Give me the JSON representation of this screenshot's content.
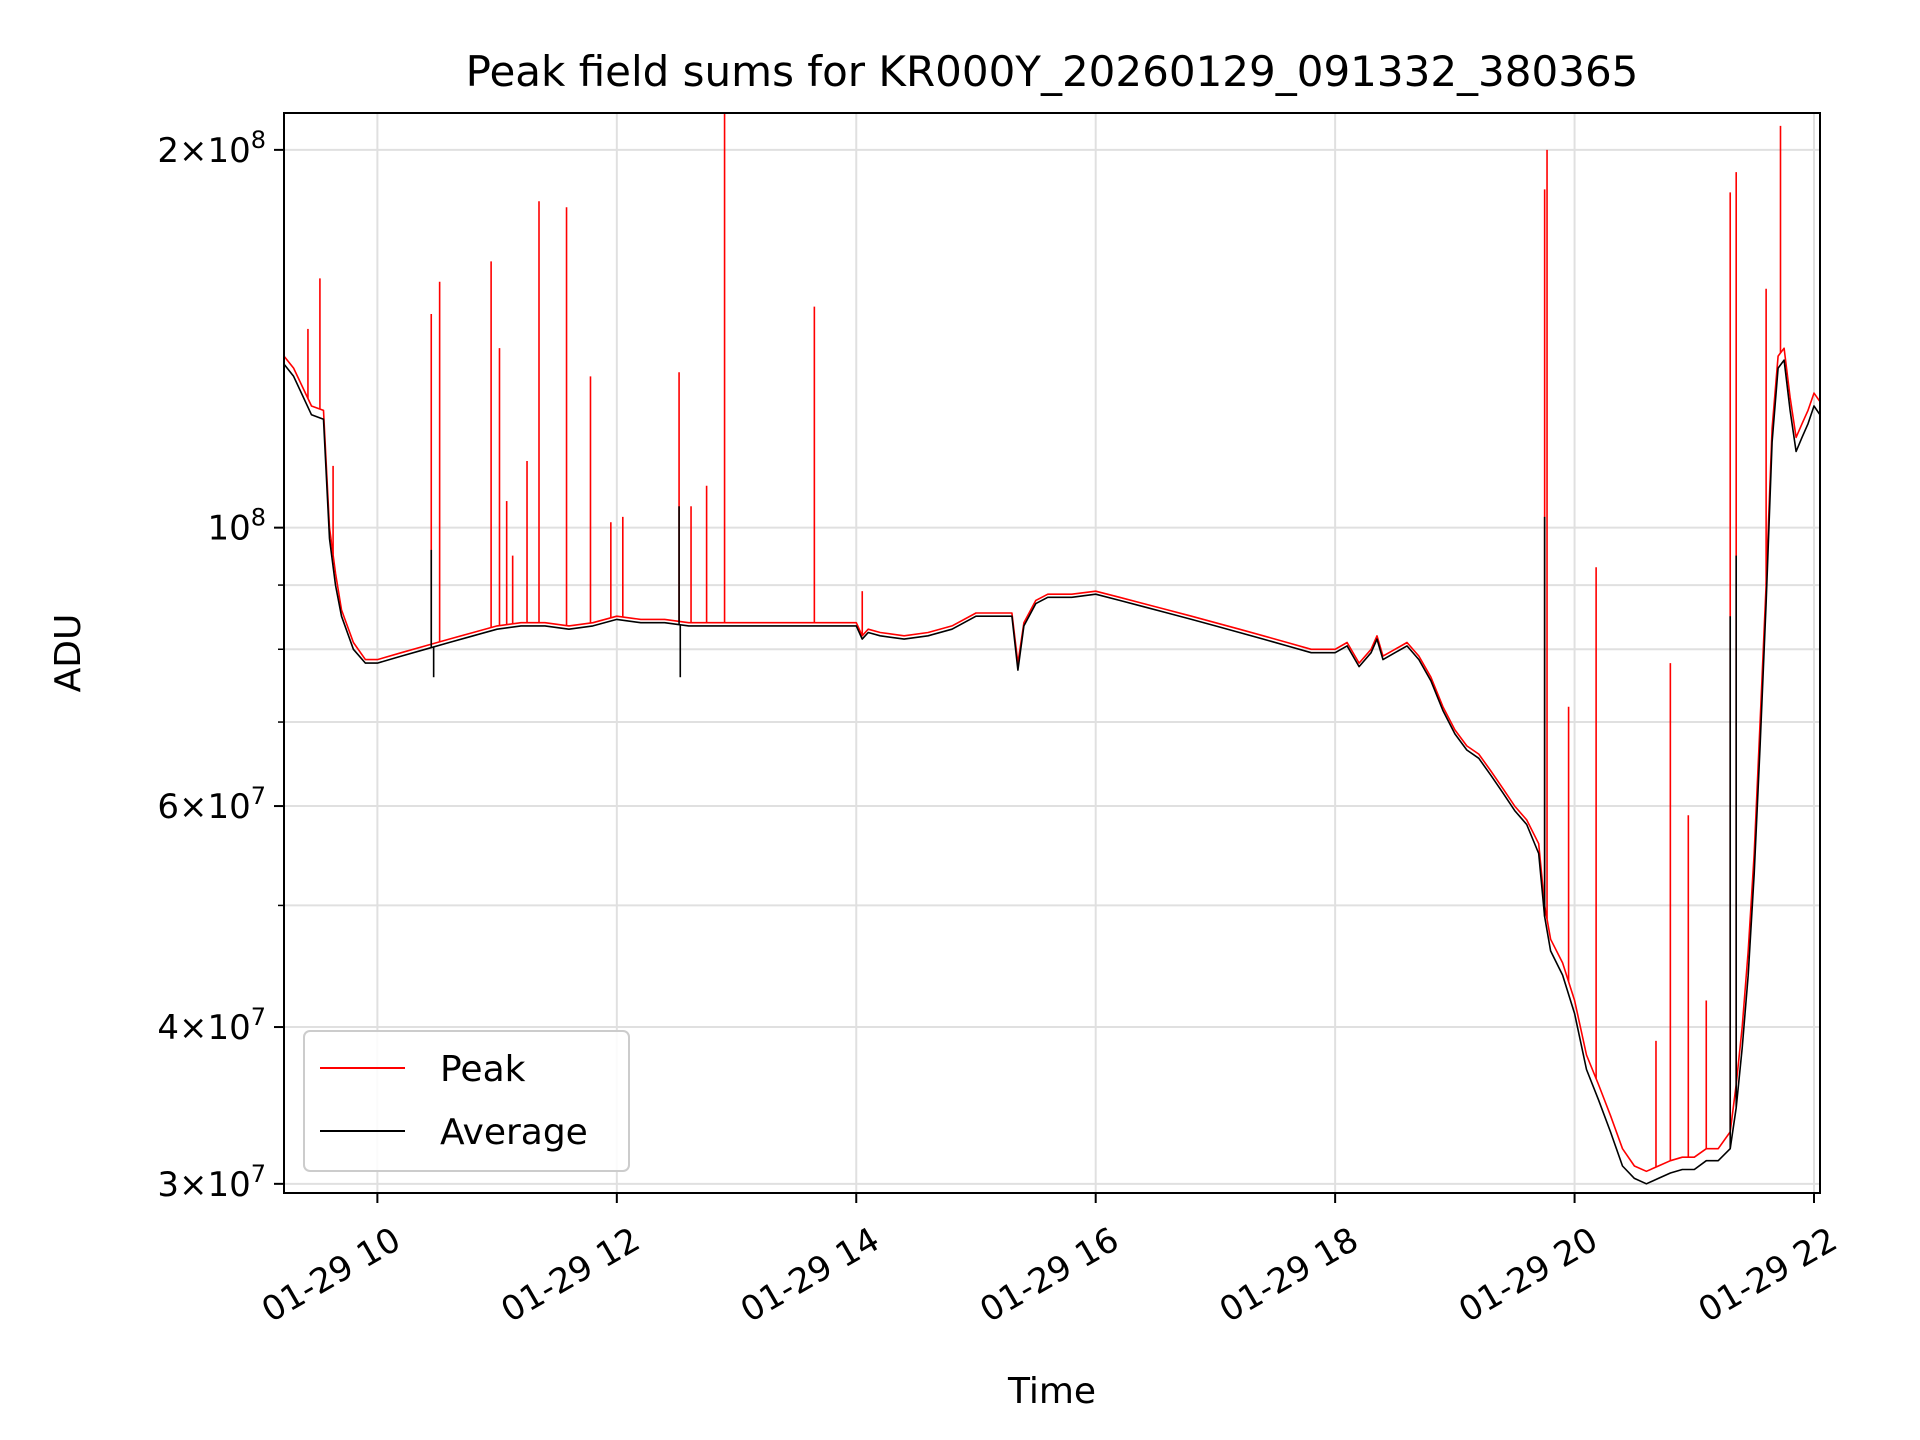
{
  "chart_data": {
    "type": "line",
    "title": "Peak field sums for KR000Y_20260129_091332_380365",
    "xlabel": "Time",
    "ylabel": "ADU",
    "yscale": "log",
    "xlim": [
      9.22,
      22.05
    ],
    "ylim": [
      29500000,
      214000000
    ],
    "grid": true,
    "legend_position": "lower-left",
    "x_ticks": [
      {
        "value": 10,
        "label": "01-29 10"
      },
      {
        "value": 12,
        "label": "01-29 12"
      },
      {
        "value": 14,
        "label": "01-29 14"
      },
      {
        "value": 16,
        "label": "01-29 16"
      },
      {
        "value": 18,
        "label": "01-29 18"
      },
      {
        "value": 20,
        "label": "01-29 20"
      },
      {
        "value": 22,
        "label": "01-29 22"
      }
    ],
    "y_major_ticks": [
      {
        "value": 30000000,
        "base": "3",
        "exp": "7"
      },
      {
        "value": 40000000,
        "base": "4",
        "exp": "7"
      },
      {
        "value": 60000000,
        "base": "6",
        "exp": "7"
      },
      {
        "value": 100000000,
        "base": "",
        "exp": "8"
      },
      {
        "value": 200000000,
        "base": "2",
        "exp": "8"
      }
    ],
    "y_minor_ticks": [
      50000000,
      70000000,
      80000000,
      90000000
    ],
    "series": [
      {
        "name": "Peak",
        "color": "#ff0000",
        "x": [
          9.22,
          9.3,
          9.45,
          9.55,
          9.6,
          9.65,
          9.7,
          9.8,
          9.9,
          10.0,
          10.2,
          10.4,
          10.6,
          10.8,
          11.0,
          11.2,
          11.4,
          11.6,
          11.8,
          12.0,
          12.2,
          12.4,
          12.6,
          12.8,
          13.0,
          13.2,
          13.4,
          13.6,
          13.8,
          14.0,
          14.05,
          14.1,
          14.2,
          14.4,
          14.6,
          14.8,
          15.0,
          15.2,
          15.3,
          15.35,
          15.4,
          15.5,
          15.6,
          15.8,
          16.0,
          16.2,
          16.4,
          16.6,
          16.8,
          17.0,
          17.2,
          17.4,
          17.6,
          17.8,
          18.0,
          18.1,
          18.2,
          18.3,
          18.35,
          18.4,
          18.5,
          18.6,
          18.7,
          18.8,
          18.9,
          19.0,
          19.1,
          19.2,
          19.3,
          19.4,
          19.5,
          19.6,
          19.7,
          19.75,
          19.8,
          19.9,
          20.0,
          20.1,
          20.2,
          20.3,
          20.4,
          20.5,
          20.6,
          20.7,
          20.8,
          20.9,
          21.0,
          21.1,
          21.2,
          21.3,
          21.35,
          21.4,
          21.45,
          21.5,
          21.55,
          21.6,
          21.65,
          21.7,
          21.75,
          21.8,
          21.85,
          21.9,
          21.95,
          22.0,
          22.05
        ],
        "values": [
          137000000,
          134000000,
          125000000,
          124000000,
          100000000,
          92000000,
          86000000,
          81000000,
          78500000,
          78500000,
          79500000,
          80500000,
          81500000,
          82500000,
          83500000,
          84000000,
          84000000,
          83500000,
          84000000,
          85000000,
          84500000,
          84500000,
          84000000,
          84000000,
          84000000,
          84000000,
          84000000,
          84000000,
          84000000,
          84000000,
          82000000,
          83000000,
          82500000,
          82000000,
          82500000,
          83500000,
          85500000,
          85500000,
          85500000,
          78000000,
          84000000,
          87500000,
          88500000,
          88500000,
          89000000,
          88000000,
          87000000,
          86000000,
          85000000,
          84000000,
          83000000,
          82000000,
          81000000,
          80000000,
          80000000,
          81000000,
          78000000,
          80000000,
          82000000,
          79000000,
          80000000,
          81000000,
          79000000,
          76000000,
          72000000,
          69000000,
          67000000,
          66000000,
          64000000,
          62000000,
          60000000,
          58500000,
          56000000,
          50000000,
          47000000,
          45000000,
          42000000,
          38000000,
          36000000,
          34000000,
          32000000,
          31000000,
          30700000,
          31000000,
          31300000,
          31500000,
          31500000,
          32000000,
          32000000,
          33000000,
          36000000,
          40000000,
          46000000,
          55000000,
          70000000,
          90000000,
          120000000,
          137000000,
          139000000,
          127000000,
          118000000,
          121000000,
          124000000,
          128000000,
          126000000
        ],
        "spikes": [
          {
            "x": 9.42,
            "value": 144000000
          },
          {
            "x": 9.52,
            "value": 158000000
          },
          {
            "x": 9.63,
            "value": 112000000
          },
          {
            "x": 10.45,
            "value": 148000000
          },
          {
            "x": 10.52,
            "value": 157000000
          },
          {
            "x": 10.95,
            "value": 163000000
          },
          {
            "x": 11.02,
            "value": 139000000
          },
          {
            "x": 11.08,
            "value": 105000000
          },
          {
            "x": 11.13,
            "value": 95000000
          },
          {
            "x": 11.25,
            "value": 113000000
          },
          {
            "x": 11.35,
            "value": 182000000
          },
          {
            "x": 11.58,
            "value": 180000000
          },
          {
            "x": 11.78,
            "value": 132000000
          },
          {
            "x": 11.95,
            "value": 101000000
          },
          {
            "x": 12.05,
            "value": 102000000
          },
          {
            "x": 12.52,
            "value": 133000000
          },
          {
            "x": 12.62,
            "value": 104000000
          },
          {
            "x": 12.75,
            "value": 108000000
          },
          {
            "x": 12.9,
            "value": 214000000
          },
          {
            "x": 13.65,
            "value": 150000000
          },
          {
            "x": 14.05,
            "value": 89000000
          },
          {
            "x": 19.75,
            "value": 186000000
          },
          {
            "x": 19.77,
            "value": 200000000
          },
          {
            "x": 19.95,
            "value": 72000000
          },
          {
            "x": 20.18,
            "value": 93000000
          },
          {
            "x": 20.68,
            "value": 39000000
          },
          {
            "x": 20.8,
            "value": 78000000
          },
          {
            "x": 20.95,
            "value": 59000000
          },
          {
            "x": 21.1,
            "value": 42000000
          },
          {
            "x": 21.3,
            "value": 185000000
          },
          {
            "x": 21.35,
            "value": 192000000
          },
          {
            "x": 21.6,
            "value": 155000000
          },
          {
            "x": 21.72,
            "value": 209000000
          }
        ]
      },
      {
        "name": "Average",
        "color": "#000000",
        "x": [
          9.22,
          9.3,
          9.45,
          9.55,
          9.6,
          9.65,
          9.7,
          9.8,
          9.9,
          10.0,
          10.2,
          10.4,
          10.6,
          10.8,
          11.0,
          11.2,
          11.4,
          11.6,
          11.8,
          12.0,
          12.2,
          12.4,
          12.6,
          12.8,
          13.0,
          13.2,
          13.4,
          13.6,
          13.8,
          14.0,
          14.05,
          14.1,
          14.2,
          14.4,
          14.6,
          14.8,
          15.0,
          15.2,
          15.3,
          15.35,
          15.4,
          15.5,
          15.6,
          15.8,
          16.0,
          16.2,
          16.4,
          16.6,
          16.8,
          17.0,
          17.2,
          17.4,
          17.6,
          17.8,
          18.0,
          18.1,
          18.2,
          18.3,
          18.35,
          18.4,
          18.5,
          18.6,
          18.7,
          18.8,
          18.9,
          19.0,
          19.1,
          19.2,
          19.3,
          19.4,
          19.5,
          19.6,
          19.7,
          19.75,
          19.8,
          19.9,
          20.0,
          20.1,
          20.2,
          20.3,
          20.4,
          20.5,
          20.6,
          20.7,
          20.8,
          20.9,
          21.0,
          21.1,
          21.2,
          21.3,
          21.35,
          21.4,
          21.45,
          21.5,
          21.55,
          21.6,
          21.65,
          21.7,
          21.75,
          21.8,
          21.85,
          21.9,
          21.95,
          22.0,
          22.05
        ],
        "values": [
          135000000,
          132000000,
          123000000,
          122000000,
          98000000,
          90000000,
          85000000,
          80000000,
          78000000,
          78000000,
          79000000,
          80000000,
          81000000,
          82000000,
          83000000,
          83500000,
          83500000,
          83000000,
          83500000,
          84500000,
          84000000,
          84000000,
          83500000,
          83500000,
          83500000,
          83500000,
          83500000,
          83500000,
          83500000,
          83500000,
          81500000,
          82500000,
          82000000,
          81500000,
          82000000,
          83000000,
          85000000,
          85000000,
          85000000,
          77000000,
          83500000,
          87000000,
          88000000,
          88000000,
          88500000,
          87500000,
          86500000,
          85500000,
          84500000,
          83500000,
          82500000,
          81500000,
          80500000,
          79500000,
          79500000,
          80500000,
          77500000,
          79500000,
          81500000,
          78500000,
          79500000,
          80500000,
          78500000,
          75500000,
          71500000,
          68500000,
          66500000,
          65500000,
          63500000,
          61500000,
          59500000,
          58000000,
          55000000,
          49000000,
          46000000,
          44000000,
          41000000,
          37000000,
          35000000,
          33000000,
          31000000,
          30300000,
          30000000,
          30300000,
          30600000,
          30800000,
          30800000,
          31300000,
          31300000,
          32000000,
          34500000,
          38500000,
          44000000,
          53000000,
          67000000,
          87000000,
          117000000,
          134000000,
          136000000,
          124000000,
          115000000,
          118000000,
          121000000,
          125000000,
          123000000
        ],
        "spikes": [
          {
            "x": 10.45,
            "value": 96000000
          },
          {
            "x": 10.47,
            "value": 76000000
          },
          {
            "x": 12.52,
            "value": 104000000
          },
          {
            "x": 12.53,
            "value": 76000000
          },
          {
            "x": 19.75,
            "value": 102000000
          },
          {
            "x": 21.3,
            "value": 85000000
          },
          {
            "x": 21.35,
            "value": 95000000
          }
        ]
      }
    ]
  }
}
